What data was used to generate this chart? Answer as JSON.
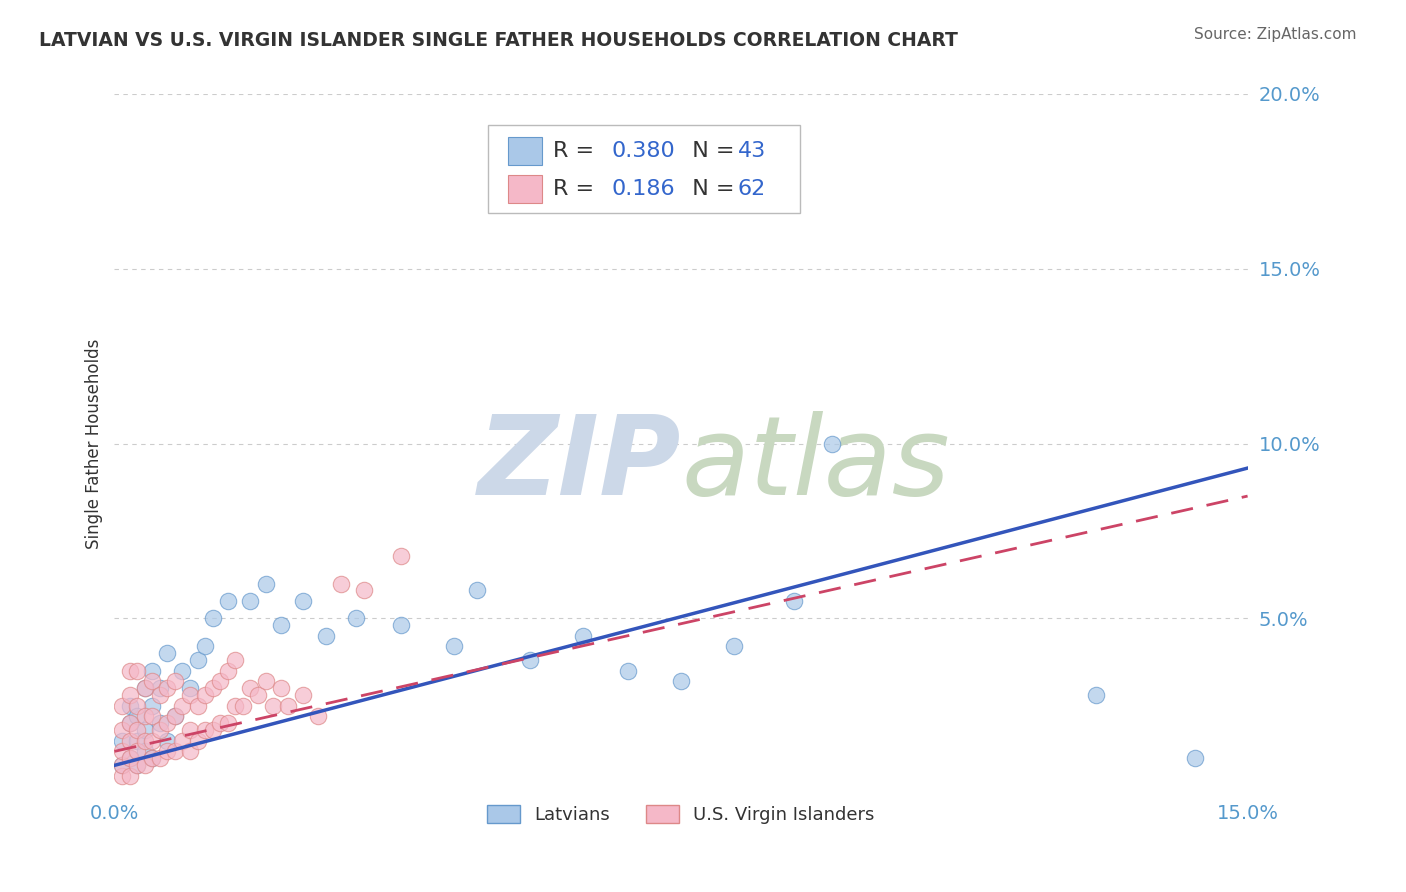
{
  "title": "LATVIAN VS U.S. VIRGIN ISLANDER SINGLE FATHER HOUSEHOLDS CORRELATION CHART",
  "source_text": "Source: ZipAtlas.com",
  "ylabel": "Single Father Households",
  "xlim": [
    0.0,
    0.15
  ],
  "ylim": [
    0.0,
    0.2
  ],
  "latvian_R": 0.38,
  "latvian_N": 43,
  "virgin_R": 0.186,
  "virgin_N": 62,
  "latvian_color": "#aac8e8",
  "latvian_edge_color": "#6699cc",
  "latvian_line_color": "#3355bb",
  "virgin_color": "#f5b8c8",
  "virgin_edge_color": "#dd8888",
  "virgin_line_color": "#cc4466",
  "background_color": "#ffffff",
  "grid_color": "#cccccc",
  "title_color": "#333333",
  "axis_tick_color": "#5599cc",
  "watermark_color": "#ccd8e8",
  "legend_text_color": "#3366cc",
  "latvian_x": [
    0.001,
    0.001,
    0.002,
    0.002,
    0.002,
    0.003,
    0.003,
    0.003,
    0.004,
    0.004,
    0.004,
    0.005,
    0.005,
    0.005,
    0.006,
    0.006,
    0.007,
    0.007,
    0.008,
    0.009,
    0.01,
    0.011,
    0.012,
    0.013,
    0.015,
    0.018,
    0.02,
    0.022,
    0.025,
    0.028,
    0.032,
    0.038,
    0.045,
    0.048,
    0.055,
    0.062,
    0.068,
    0.075,
    0.082,
    0.09,
    0.095,
    0.13,
    0.143
  ],
  "latvian_y": [
    0.008,
    0.015,
    0.01,
    0.02,
    0.025,
    0.008,
    0.015,
    0.022,
    0.012,
    0.018,
    0.03,
    0.01,
    0.025,
    0.035,
    0.02,
    0.03,
    0.015,
    0.04,
    0.022,
    0.035,
    0.03,
    0.038,
    0.042,
    0.05,
    0.055,
    0.055,
    0.06,
    0.048,
    0.055,
    0.045,
    0.05,
    0.048,
    0.042,
    0.058,
    0.038,
    0.045,
    0.035,
    0.032,
    0.042,
    0.055,
    0.1,
    0.028,
    0.01
  ],
  "virgin_x": [
    0.001,
    0.001,
    0.001,
    0.001,
    0.001,
    0.002,
    0.002,
    0.002,
    0.002,
    0.002,
    0.002,
    0.003,
    0.003,
    0.003,
    0.003,
    0.003,
    0.004,
    0.004,
    0.004,
    0.004,
    0.005,
    0.005,
    0.005,
    0.005,
    0.006,
    0.006,
    0.006,
    0.007,
    0.007,
    0.007,
    0.008,
    0.008,
    0.008,
    0.009,
    0.009,
    0.01,
    0.01,
    0.01,
    0.011,
    0.011,
    0.012,
    0.012,
    0.013,
    0.013,
    0.014,
    0.014,
    0.015,
    0.015,
    0.016,
    0.016,
    0.017,
    0.018,
    0.019,
    0.02,
    0.021,
    0.022,
    0.023,
    0.025,
    0.027,
    0.03,
    0.033,
    0.038
  ],
  "virgin_y": [
    0.005,
    0.008,
    0.012,
    0.018,
    0.025,
    0.005,
    0.01,
    0.015,
    0.02,
    0.028,
    0.035,
    0.008,
    0.012,
    0.018,
    0.025,
    0.035,
    0.008,
    0.015,
    0.022,
    0.03,
    0.01,
    0.015,
    0.022,
    0.032,
    0.01,
    0.018,
    0.028,
    0.012,
    0.02,
    0.03,
    0.012,
    0.022,
    0.032,
    0.015,
    0.025,
    0.012,
    0.018,
    0.028,
    0.015,
    0.025,
    0.018,
    0.028,
    0.018,
    0.03,
    0.02,
    0.032,
    0.02,
    0.035,
    0.025,
    0.038,
    0.025,
    0.03,
    0.028,
    0.032,
    0.025,
    0.03,
    0.025,
    0.028,
    0.022,
    0.06,
    0.058,
    0.068
  ]
}
